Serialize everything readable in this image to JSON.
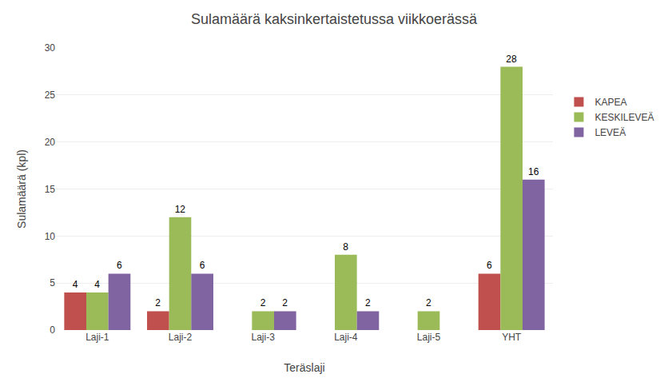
{
  "chart_data": {
    "type": "bar",
    "title": "Sulamäärä kaksinkertaistetussa viikkoerässä",
    "xlabel": "Teräslaji",
    "ylabel": "Sulamäärä (kpl)",
    "categories": [
      "Laji-1",
      "Laji-2",
      "Laji-3",
      "Laji-4",
      "Laji-5",
      "YHT"
    ],
    "series": [
      {
        "name": "KAPEA",
        "color": "#c0504d",
        "values": [
          4,
          2,
          0,
          0,
          0,
          6
        ]
      },
      {
        "name": "KESKILEVEÄ",
        "color": "#9bbb59",
        "values": [
          4,
          12,
          2,
          8,
          2,
          28
        ]
      },
      {
        "name": "LEVEÄ",
        "color": "#8064a2",
        "values": [
          6,
          6,
          2,
          2,
          0,
          16
        ]
      }
    ],
    "ylim": [
      0,
      30
    ],
    "yticks": [
      0,
      5,
      10,
      15,
      20,
      25,
      30
    ],
    "grid": true,
    "legend": "right",
    "data_labels": true
  }
}
